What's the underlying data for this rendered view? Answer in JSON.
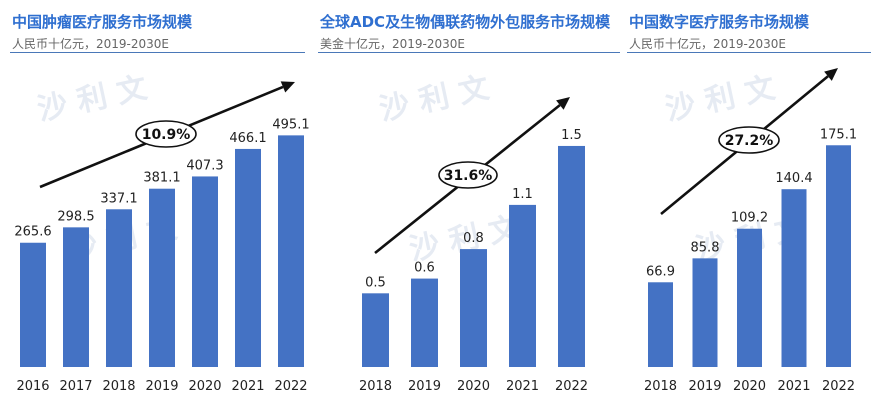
{
  "chart_data": [
    {
      "type": "bar",
      "title": "中国肿瘤医疗服务市场规模",
      "subtitle": "人民币十亿元，2019-2030E",
      "categories": [
        "2016",
        "2017",
        "2018",
        "2019",
        "2020",
        "2021",
        "2022"
      ],
      "values": [
        265.6,
        298.5,
        337.1,
        381.1,
        407.3,
        466.1,
        495.1
      ],
      "value_labels": [
        "265.6",
        "298.5",
        "337.1",
        "381.1",
        "407.3",
        "466.1",
        "495.1"
      ],
      "cagr_label": "10.9%",
      "ylim": [
        0,
        560
      ],
      "bar_color": "#4472c4"
    },
    {
      "type": "bar",
      "title": "全球ADC及生物偶联药物外包服务市场规模",
      "subtitle": "美金十亿元，2019-2030E",
      "categories": [
        "2018",
        "2019",
        "2020",
        "2021",
        "2022"
      ],
      "values": [
        0.5,
        0.6,
        0.8,
        1.1,
        1.5
      ],
      "value_labels": [
        "0.5",
        "0.6",
        "0.8",
        "1.1",
        "1.5"
      ],
      "cagr_label": "31.6%",
      "ylim": [
        0,
        1.71
      ],
      "bar_color": "#4472c4"
    },
    {
      "type": "bar",
      "title": "中国数字医疗服务市场规模",
      "subtitle": "人民币十亿元，2019-2030E",
      "categories": [
        "2018",
        "2019",
        "2020",
        "2021",
        "2022"
      ],
      "values": [
        66.9,
        85.8,
        109.2,
        140.4,
        175.1
      ],
      "value_labels": [
        "66.9",
        "85.8",
        "109.2",
        "140.4",
        "175.1"
      ],
      "cagr_label": "27.2%",
      "ylim": [
        0,
        199
      ],
      "bar_color": "#4472c4"
    }
  ],
  "watermark": {
    "text": "沙 利 文",
    "color": "#e6ebf3"
  }
}
